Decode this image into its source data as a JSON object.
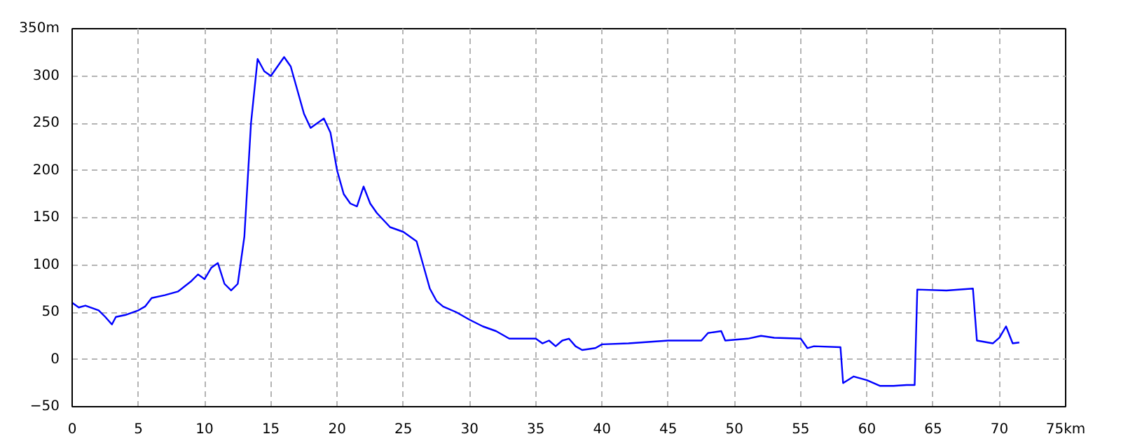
{
  "chart_data": {
    "type": "line",
    "xlim": [
      0,
      75
    ],
    "ylim": [
      -50,
      350
    ],
    "xticks": [
      0,
      5,
      10,
      15,
      20,
      25,
      30,
      35,
      40,
      45,
      50,
      55,
      60,
      65,
      70,
      {
        "value": 75,
        "label": "75km"
      }
    ],
    "yticks": [
      {
        "value": -50,
        "label": "−50"
      },
      0,
      50,
      100,
      150,
      200,
      250,
      300,
      {
        "value": 350,
        "label": "350m"
      }
    ],
    "grid": true,
    "line_style": "solid",
    "series": [
      {
        "color": "#0000ff",
        "x": [
          0,
          0.5,
          1,
          2,
          2.5,
          3,
          3.3,
          4,
          5,
          5.5,
          6,
          7,
          8,
          9,
          9.5,
          10,
          10.5,
          11,
          11.5,
          12,
          12.5,
          13,
          13.5,
          14,
          14.5,
          15,
          15.5,
          16,
          16.5,
          17,
          17.5,
          18,
          18.5,
          19,
          19.5,
          20,
          20.5,
          21,
          21.5,
          22,
          22.5,
          23,
          24,
          25,
          26,
          26.5,
          27,
          27.5,
          28,
          29,
          30,
          31,
          32,
          33,
          35,
          35.5,
          36,
          36.5,
          37,
          37.5,
          38,
          38.5,
          39.5,
          40,
          42,
          45,
          47.5,
          48,
          49,
          49.3,
          51,
          52,
          53,
          55,
          55.5,
          56,
          58,
          58.2,
          59,
          60,
          61,
          62,
          63,
          63.6,
          63.8,
          66,
          68,
          68.3,
          69.5,
          70,
          70.5,
          71,
          71.5
        ],
        "values": [
          60,
          55,
          57,
          52,
          45,
          37,
          45,
          47,
          52,
          56,
          65,
          68,
          72,
          83,
          90,
          85,
          97,
          102,
          80,
          73,
          80,
          130,
          250,
          318,
          305,
          300,
          310,
          320,
          310,
          285,
          260,
          245,
          250,
          255,
          240,
          200,
          175,
          165,
          162,
          183,
          165,
          155,
          140,
          135,
          125,
          100,
          75,
          62,
          56,
          50,
          42,
          35,
          30,
          22,
          22,
          17,
          20,
          14,
          20,
          22,
          14,
          10,
          12,
          16,
          17,
          20,
          20,
          28,
          30,
          20,
          22,
          25,
          23,
          22,
          12,
          14,
          13,
          -25,
          -18,
          -22,
          -28,
          -28,
          -27,
          -27,
          74,
          73,
          75,
          20,
          17,
          23,
          35,
          17,
          18
        ]
      }
    ]
  }
}
